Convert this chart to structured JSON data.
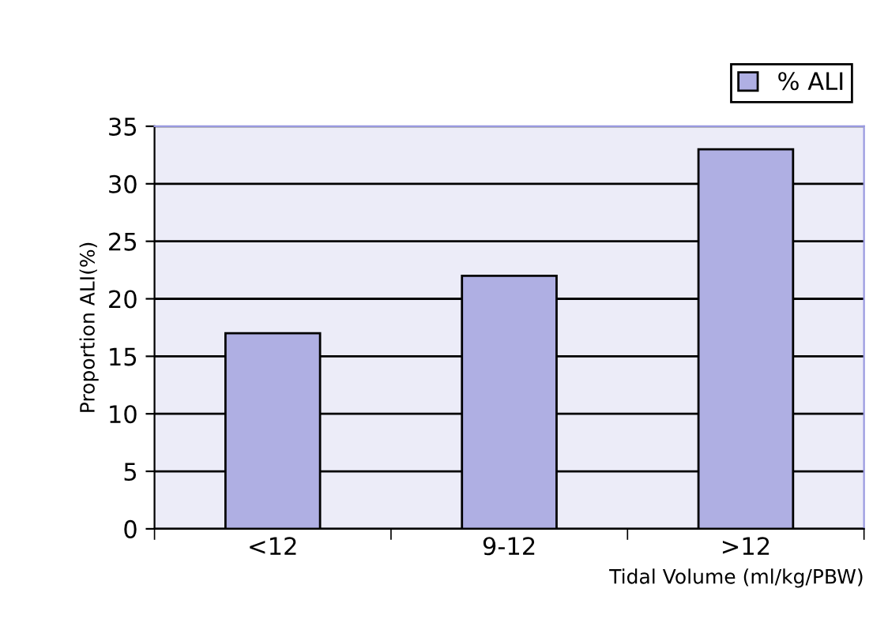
{
  "chart_data": {
    "type": "bar",
    "xlabel": "Tidal Volume (ml/kg/PBW)",
    "ylabel": "Proportion ALI(%)",
    "categories": [
      "<12",
      "9-12",
      ">12"
    ],
    "series": [
      {
        "name": "% ALI",
        "color": "#afafe3",
        "values": [
          17,
          22,
          33
        ]
      }
    ],
    "ylim": [
      0,
      35
    ],
    "yticks": [
      0,
      5,
      10,
      15,
      20,
      25,
      30,
      35
    ],
    "grid": "y",
    "legend": "top right"
  }
}
